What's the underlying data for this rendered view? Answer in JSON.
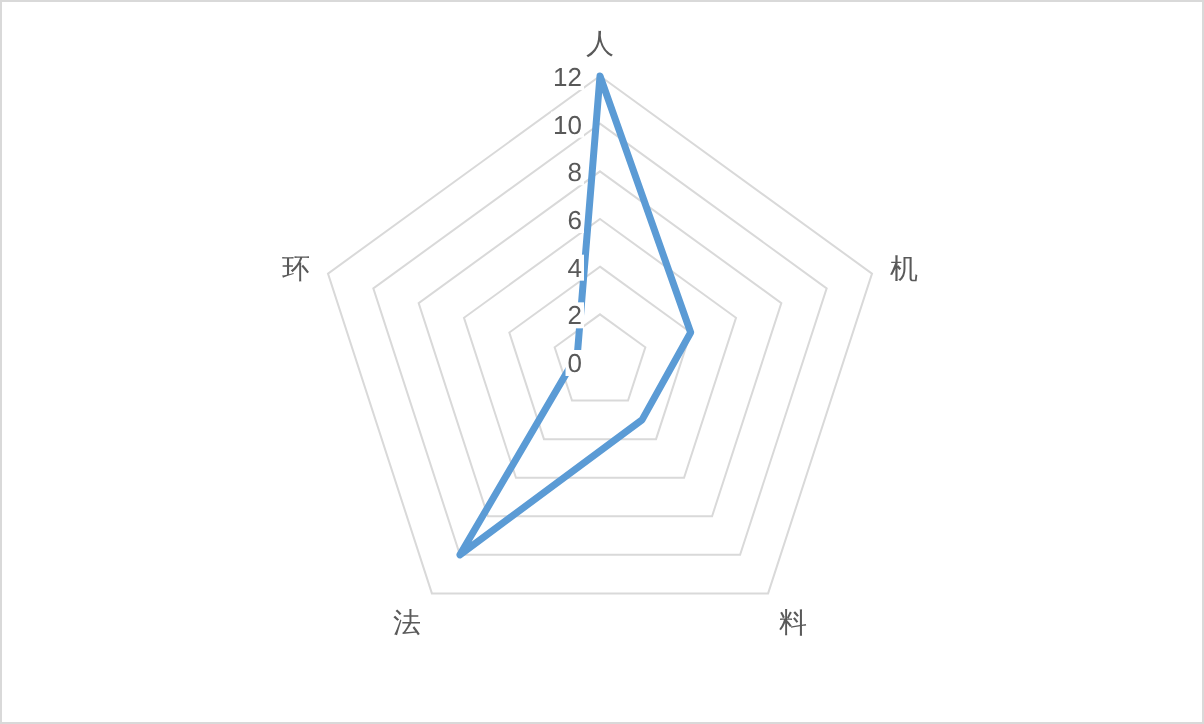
{
  "chart_data": {
    "type": "radar",
    "categories": [
      "人",
      "机",
      "料",
      "法",
      "环"
    ],
    "series": [
      {
        "color": "#5b9bd5",
        "values": [
          12,
          4,
          3,
          10,
          1
        ]
      }
    ],
    "ylim": [
      0,
      12
    ],
    "yticks": [
      0,
      2,
      4,
      6,
      8,
      10,
      12
    ],
    "grid": true,
    "marker": "none"
  }
}
